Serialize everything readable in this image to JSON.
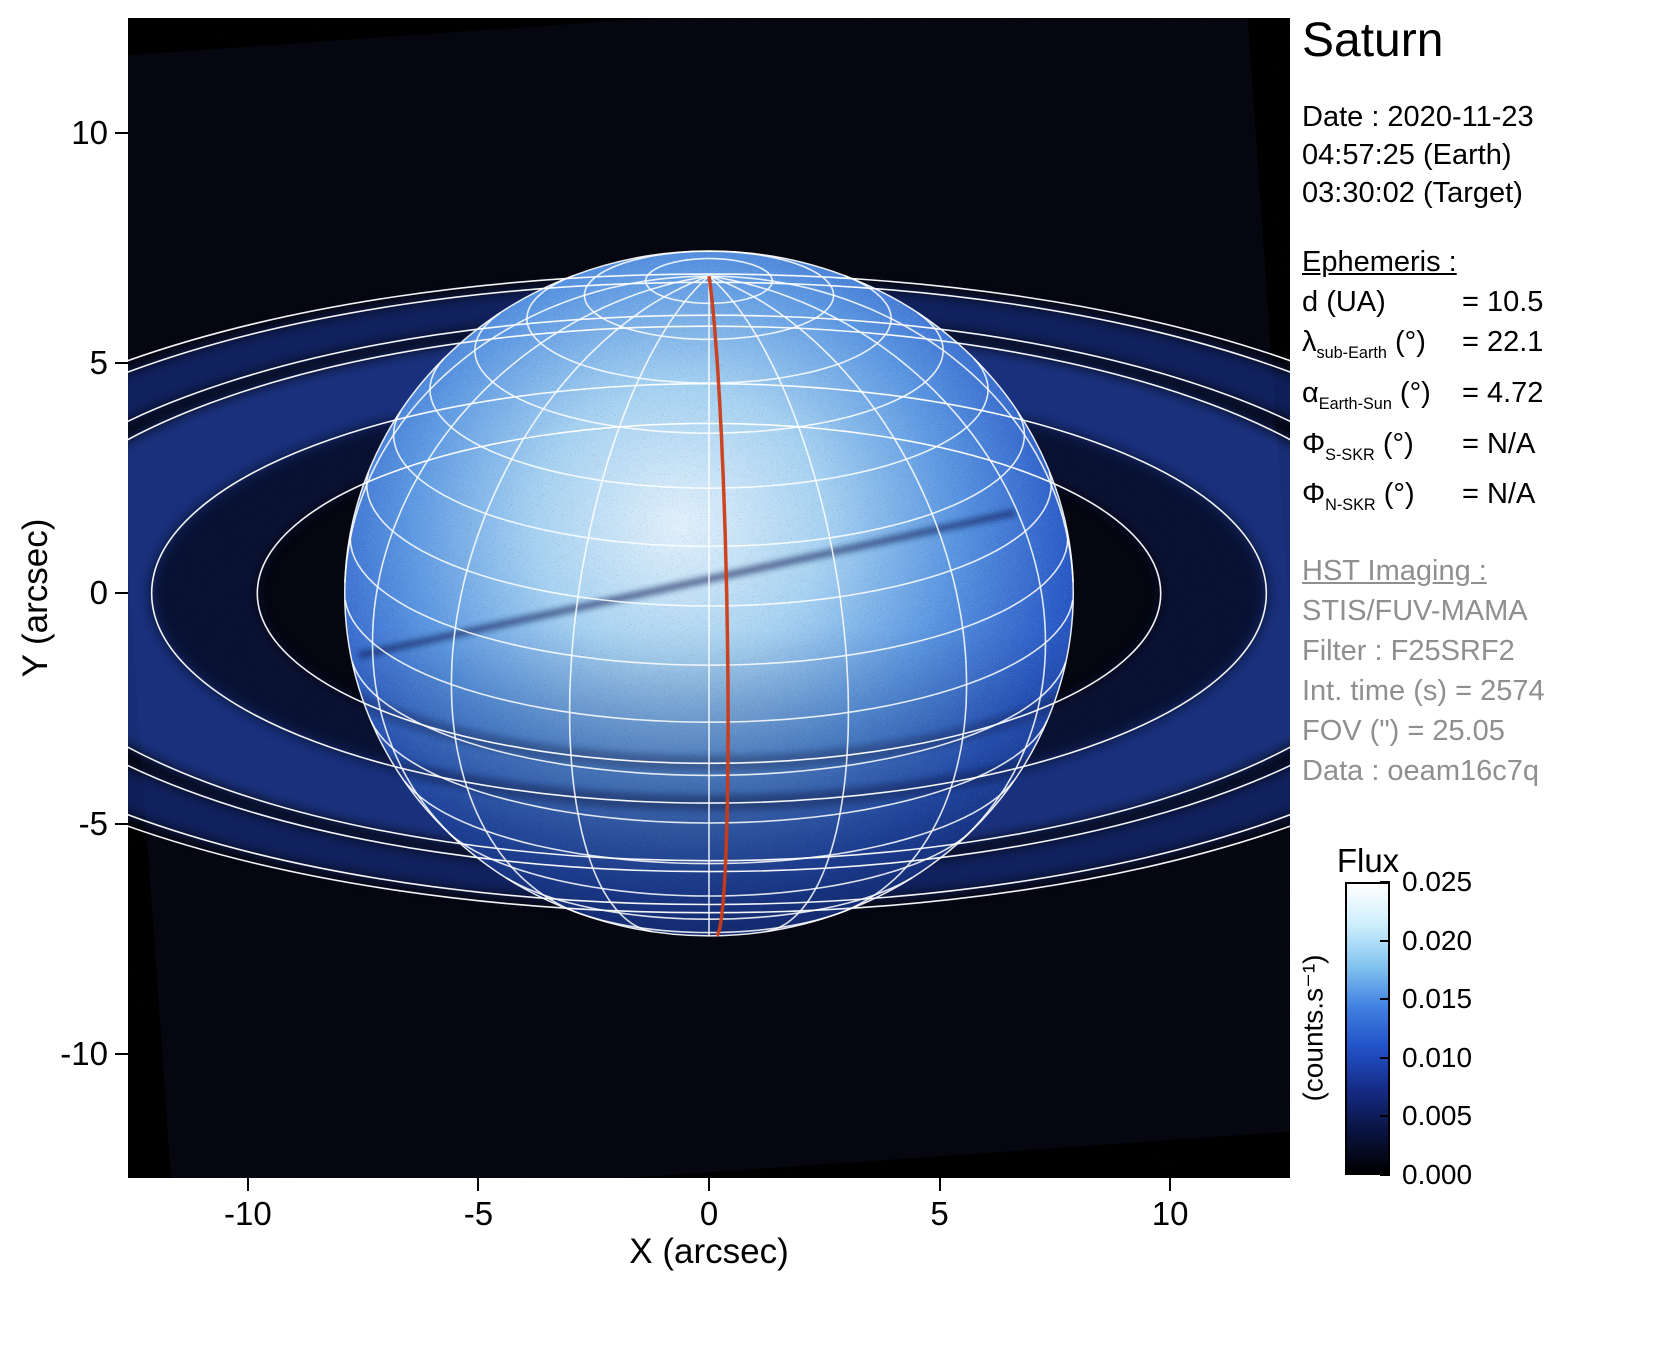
{
  "title": "Saturn",
  "date_block": {
    "date": "Date : 2020-11-23",
    "earth_time": "04:57:25 (Earth)",
    "target_time": "03:30:02 (Target)"
  },
  "ephemeris": {
    "heading": "Ephemeris :",
    "rows": [
      {
        "symbol": "d",
        "sub": "",
        "unit": "(UA)",
        "value": "= 10.5"
      },
      {
        "symbol": "λ",
        "sub": "sub-Earth",
        "unit": "(°)",
        "value": "= 22.1"
      },
      {
        "symbol": "α",
        "sub": "Earth-Sun",
        "unit": "(°)",
        "value": "= 4.72"
      },
      {
        "symbol": "Φ",
        "sub": "S-SKR",
        "unit": "(°)",
        "value": "= N/A"
      },
      {
        "symbol": "Φ",
        "sub": "N-SKR",
        "unit": "(°)",
        "value": "= N/A"
      }
    ]
  },
  "hst": {
    "heading": "HST Imaging :",
    "lines": [
      "STIS/FUV-MAMA",
      "Filter : F25SRF2",
      "Int. time (s) = 2574",
      "FOV (\") = 25.05",
      "Data : oeam16c7q"
    ]
  },
  "axes": {
    "xlabel": "X (arcsec)",
    "ylabel": "Y (arcsec)",
    "xtick_labels": [
      "-10",
      "-5",
      "0",
      "5",
      "10"
    ],
    "ytick_labels": [
      "10",
      "5",
      "0",
      "-5",
      "-10"
    ]
  },
  "colorbar": {
    "title": "Flux",
    "unit": "(counts.s⁻¹)",
    "tick_labels": [
      "0.025",
      "0.020",
      "0.015",
      "0.010",
      "0.005",
      "0.000"
    ],
    "colormap_bottom_to_top": [
      "#000000",
      "#0a1340",
      "#152b85",
      "#2150c6",
      "#3f7fe0",
      "#82c3f0",
      "#cdeefc",
      "#ffffff"
    ]
  },
  "chart_data": {
    "type": "heatmap",
    "title": "Saturn",
    "xlabel": "X (arcsec)",
    "ylabel": "Y (arcsec)",
    "xlim": [
      -12.6,
      12.6
    ],
    "ylim": [
      -12.7,
      12.5
    ],
    "xticks": [
      -10,
      -5,
      0,
      5,
      10
    ],
    "yticks": [
      10,
      5,
      0,
      -5,
      -10
    ],
    "flux_min": 0.0,
    "flux_max": 0.025,
    "flux_ticks": [
      0.025,
      0.02,
      0.015,
      0.01,
      0.005,
      0.0
    ],
    "fov_arcsec": 25.05,
    "fov_rotation_deg": -4,
    "planet": {
      "center_arcsec": [
        0,
        0
      ],
      "equatorial_radius_arcsec": 7.9,
      "polar_flattening_visual": 0.94,
      "subobserver_lat_deg": 22.1,
      "grid_lat_step_deg": 10,
      "grid_lat_min_deg": -60,
      "grid_lat_max_deg": 80,
      "grid_lon_step_deg": 22.5,
      "central_meridian_offset_deg": 3,
      "central_meridian_color": "#cd3b16"
    },
    "ring_line_radii_rp": [
      1.24,
      1.53,
      1.95,
      2.03,
      2.27,
      2.33
    ],
    "ring_glow_bands": [
      {
        "inner_rp": 1.24,
        "outer_rp": 1.53,
        "color": "#0c1a58",
        "opacity": 0.5
      },
      {
        "inner_rp": 1.53,
        "outer_rp": 1.95,
        "color": "#2a55d8",
        "opacity": 0.55
      },
      {
        "inner_rp": 2.03,
        "outer_rp": 2.27,
        "color": "#1d3eb0",
        "opacity": 0.5
      }
    ]
  }
}
